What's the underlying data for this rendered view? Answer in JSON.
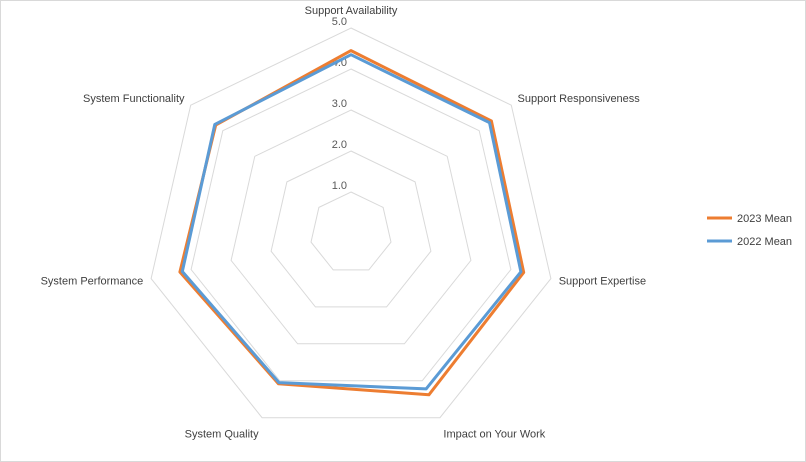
{
  "chart_data": {
    "type": "radar",
    "axes": [
      "Support Availability",
      "Support Responsiveness",
      "Support Expertise",
      "Impact on Your Work",
      "System Quality",
      "System Performance",
      "System Functionality"
    ],
    "ticks": [
      "1.0",
      "2.0",
      "3.0",
      "4.0",
      "5.0"
    ],
    "range": [
      0,
      5
    ],
    "series": [
      {
        "name": "2023 Mean",
        "color": "#ED7D31",
        "values": [
          4.45,
          4.38,
          4.32,
          4.38,
          4.08,
          4.28,
          4.22
        ]
      },
      {
        "name": "2022 Mean",
        "color": "#5B9BD5",
        "values": [
          4.35,
          4.32,
          4.25,
          4.22,
          4.05,
          4.22,
          4.25
        ]
      }
    ],
    "legend": "right",
    "grid": true
  }
}
